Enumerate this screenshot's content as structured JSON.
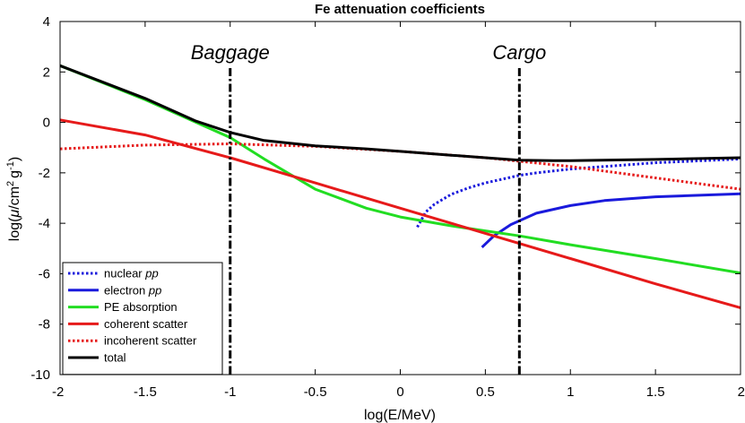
{
  "chart_data": {
    "type": "line",
    "title": "Fe attenuation coefficients",
    "xlabel": "log(E/MeV)",
    "ylabel_parts": [
      "log(",
      "μ",
      "/cm",
      "2",
      "g",
      "-1",
      ")"
    ],
    "xlim": [
      -2,
      2
    ],
    "ylim": [
      -10,
      4
    ],
    "xticks": [
      "-2",
      "-1.5",
      "-1",
      "-0.5",
      "0",
      "0.5",
      "1",
      "1.5",
      "2"
    ],
    "yticks": [
      "-10",
      "-8",
      "-6",
      "-4",
      "-2",
      "0",
      "2",
      "4"
    ],
    "grid": false,
    "legend_position": "bottom-left",
    "annotations": [
      {
        "text": "Baggage",
        "x": -1,
        "y": 2.8
      },
      {
        "text": "Cargo",
        "x": 0.7,
        "y": 2.8
      }
    ],
    "vlines": [
      {
        "x": -1,
        "color": "#000000",
        "style": "dashdot"
      },
      {
        "x": 0.7,
        "color": "#000000",
        "style": "dashdot"
      }
    ],
    "series": [
      {
        "name": "nuclear ",
        "name_italic": "pp",
        "color": "#1a1adc",
        "style": "dotted",
        "x": [
          0.1,
          0.15,
          0.2,
          0.3,
          0.4,
          0.5,
          0.6,
          0.7,
          0.8,
          1.0,
          1.2,
          1.5,
          2.0
        ],
        "y": [
          -4.15,
          -3.55,
          -3.25,
          -2.85,
          -2.6,
          -2.4,
          -2.25,
          -2.1,
          -2.0,
          -1.85,
          -1.75,
          -1.6,
          -1.45
        ]
      },
      {
        "name": "electron ",
        "name_italic": "pp",
        "color": "#1a1adc",
        "style": "solid",
        "x": [
          0.48,
          0.55,
          0.65,
          0.8,
          1.0,
          1.2,
          1.5,
          2.0
        ],
        "y": [
          -4.95,
          -4.5,
          -4.05,
          -3.6,
          -3.3,
          -3.1,
          -2.95,
          -2.83
        ]
      },
      {
        "name": "PE absorption",
        "name_italic": "",
        "color": "#22dd22",
        "style": "solid",
        "x": [
          -2,
          -1.5,
          -1.0,
          -0.8,
          -0.5,
          -0.2,
          0,
          0.3,
          0.5,
          0.7,
          1.0,
          1.5,
          2.0
        ],
        "y": [
          2.25,
          0.9,
          -0.6,
          -1.45,
          -2.65,
          -3.4,
          -3.75,
          -4.1,
          -4.3,
          -4.5,
          -4.85,
          -5.4,
          -5.97
        ]
      },
      {
        "name": "coherent scatter",
        "name_italic": "",
        "color": "#e61a1a",
        "style": "solid",
        "x": [
          -2,
          -1.5,
          -1.0,
          -0.5,
          0,
          0.5,
          1.0,
          1.5,
          2.0
        ],
        "y": [
          0.1,
          -0.5,
          -1.4,
          -2.4,
          -3.4,
          -4.4,
          -5.4,
          -6.4,
          -7.35
        ]
      },
      {
        "name": "incoherent scatter",
        "name_italic": "",
        "color": "#e61a1a",
        "style": "dotted",
        "x": [
          -2,
          -1.5,
          -1.0,
          -0.5,
          0,
          0.5,
          1.0,
          1.5,
          2.0
        ],
        "y": [
          -1.05,
          -0.9,
          -0.85,
          -0.95,
          -1.15,
          -1.4,
          -1.75,
          -2.2,
          -2.65
        ]
      },
      {
        "name": "total",
        "name_italic": "",
        "color": "#000000",
        "style": "solid",
        "x": [
          -2,
          -1.5,
          -1.2,
          -1.0,
          -0.8,
          -0.5,
          -0.2,
          0,
          0.3,
          0.5,
          0.7,
          0.9,
          1.0,
          1.5,
          2.0
        ],
        "y": [
          2.25,
          0.95,
          0.05,
          -0.4,
          -0.72,
          -0.93,
          -1.05,
          -1.15,
          -1.3,
          -1.4,
          -1.5,
          -1.52,
          -1.52,
          -1.47,
          -1.4
        ]
      }
    ]
  }
}
